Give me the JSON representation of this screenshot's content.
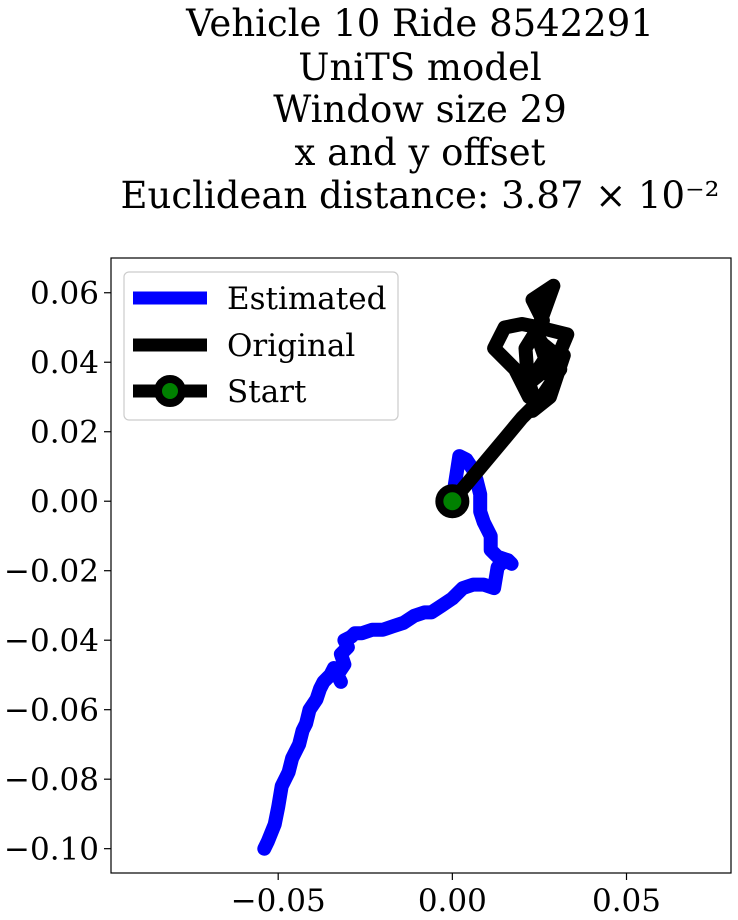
{
  "chart_data": {
    "type": "line",
    "title_lines": [
      "Vehicle 10 Ride 8542291",
      "UniTS model",
      "Window size 29",
      "x and y offset",
      "Euclidean distance: 3.87 × 10⁻²"
    ],
    "title": "Vehicle 10 Ride 8542291 / UniTS model / Window size 29 / x and y offset / Euclidean distance: 3.87 × 10⁻²",
    "xlabel": "",
    "ylabel": "",
    "xlim": [
      -0.098,
      0.08
    ],
    "ylim": [
      -0.107,
      0.07
    ],
    "x_ticks": [
      -0.05,
      0.0,
      0.05
    ],
    "x_tick_labels": [
      "−0.05",
      "0.00",
      "0.05"
    ],
    "y_ticks": [
      0.06,
      0.04,
      0.02,
      0.0,
      -0.02,
      -0.04,
      -0.06,
      -0.08,
      -0.1
    ],
    "y_tick_labels": [
      "0.06",
      "0.04",
      "0.02",
      "0.00",
      "−0.02",
      "−0.04",
      "−0.06",
      "−0.08",
      "−0.10"
    ],
    "grid": false,
    "legend_position": "top-left",
    "series": [
      {
        "name": "Estimated",
        "color": "#0000ff",
        "x": [
          -0.054,
          -0.053,
          -0.051,
          -0.05,
          -0.049,
          -0.047,
          -0.046,
          -0.044,
          -0.043,
          -0.042,
          -0.041,
          -0.039,
          -0.038,
          -0.037,
          -0.035,
          -0.034,
          -0.032,
          -0.033,
          -0.031,
          -0.032,
          -0.03,
          -0.031,
          -0.029,
          -0.028,
          -0.026,
          -0.023,
          -0.02,
          -0.017,
          -0.014,
          -0.011,
          -0.008,
          -0.006,
          -0.003,
          0.0,
          0.003,
          0.006,
          0.009,
          0.012,
          0.013,
          0.015,
          0.017,
          0.016,
          0.013,
          0.011,
          0.011,
          0.009,
          0.008,
          0.008,
          0.007,
          0.006,
          0.004,
          0.002,
          0.0
        ],
        "y": [
          -0.1,
          -0.098,
          -0.093,
          -0.088,
          -0.082,
          -0.078,
          -0.074,
          -0.07,
          -0.066,
          -0.064,
          -0.06,
          -0.057,
          -0.054,
          -0.052,
          -0.05,
          -0.048,
          -0.052,
          -0.05,
          -0.047,
          -0.044,
          -0.042,
          -0.04,
          -0.039,
          -0.038,
          -0.038,
          -0.037,
          -0.037,
          -0.036,
          -0.035,
          -0.033,
          -0.032,
          -0.032,
          -0.03,
          -0.028,
          -0.025,
          -0.024,
          -0.024,
          -0.025,
          -0.019,
          -0.017,
          -0.018,
          -0.017,
          -0.016,
          -0.014,
          -0.01,
          -0.006,
          -0.003,
          0.002,
          0.006,
          0.009,
          0.012,
          0.013,
          0.0
        ]
      },
      {
        "name": "Original",
        "color": "#000000",
        "x": [
          0.0,
          0.005,
          0.01,
          0.015,
          0.02,
          0.024,
          0.022,
          0.027,
          0.025,
          0.03,
          0.028,
          0.033,
          0.025,
          0.02,
          0.015,
          0.012,
          0.018,
          0.022,
          0.021,
          0.026,
          0.023,
          0.029,
          0.024,
          0.031,
          0.023,
          0.028,
          0.032,
          0.022,
          0.026
        ],
        "y": [
          0.0,
          0.006,
          0.012,
          0.018,
          0.024,
          0.028,
          0.034,
          0.04,
          0.046,
          0.042,
          0.036,
          0.048,
          0.05,
          0.051,
          0.05,
          0.044,
          0.038,
          0.03,
          0.044,
          0.052,
          0.058,
          0.062,
          0.048,
          0.038,
          0.026,
          0.03,
          0.042,
          0.034,
          0.04
        ]
      }
    ],
    "start_marker": {
      "name": "Start",
      "x": 0.0,
      "y": 0.0,
      "face_color": "#008000",
      "edge_color": "#000000"
    }
  }
}
